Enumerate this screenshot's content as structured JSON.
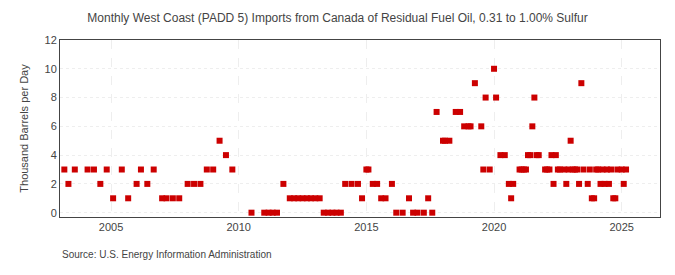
{
  "chart_data": {
    "type": "scatter",
    "title": "Monthly West Coast (PADD 5) Imports from Canada of Residual Fuel Oil, 0.31 to 1.00% Sulfur",
    "y_label": "Thousand Barrels per Day",
    "annotations": [
      "Source: U.S. Energy Information Administration"
    ],
    "color": "#cc0000",
    "marker": "square",
    "grid": true,
    "xlim": [
      2003.0,
      2026.5
    ],
    "xticks": [
      2005,
      2010,
      2015,
      2020,
      2025
    ],
    "ylim": [
      -0.3,
      12
    ],
    "yticks": [
      0,
      2,
      4,
      6,
      8,
      10,
      12
    ],
    "x": [
      2003.17,
      2003.33,
      2003.58,
      2004.08,
      2004.33,
      2004.58,
      2004.83,
      2005.08,
      2005.42,
      2005.67,
      2006.0,
      2006.17,
      2006.42,
      2006.67,
      2007.0,
      2007.17,
      2007.42,
      2007.67,
      2008.0,
      2008.25,
      2008.5,
      2008.75,
      2009.0,
      2009.25,
      2009.5,
      2009.75,
      2010.5,
      2011.0,
      2011.17,
      2011.33,
      2011.5,
      2011.75,
      2012.0,
      2012.17,
      2012.33,
      2012.5,
      2012.67,
      2012.83,
      2013.0,
      2013.17,
      2013.33,
      2013.5,
      2013.67,
      2013.83,
      2014.0,
      2014.17,
      2014.42,
      2014.67,
      2014.83,
      2015.0,
      2015.08,
      2015.25,
      2015.42,
      2015.58,
      2015.75,
      2016.0,
      2016.17,
      2016.42,
      2016.67,
      2016.83,
      2017.0,
      2017.25,
      2017.42,
      2017.58,
      2017.75,
      2018.0,
      2018.08,
      2018.25,
      2018.5,
      2018.67,
      2018.83,
      2019.0,
      2019.08,
      2019.25,
      2019.5,
      2019.58,
      2019.67,
      2019.83,
      2020.0,
      2020.08,
      2020.25,
      2020.42,
      2020.58,
      2020.67,
      2020.75,
      2021.0,
      2021.08,
      2021.17,
      2021.25,
      2021.33,
      2021.42,
      2021.5,
      2021.58,
      2021.67,
      2021.75,
      2022.0,
      2022.08,
      2022.17,
      2022.25,
      2022.33,
      2022.42,
      2022.5,
      2022.58,
      2022.75,
      2022.83,
      2022.92,
      2023.0,
      2023.08,
      2023.17,
      2023.25,
      2023.33,
      2023.42,
      2023.5,
      2023.67,
      2023.75,
      2023.83,
      2023.92,
      2024.0,
      2024.08,
      2024.17,
      2024.25,
      2024.33,
      2024.42,
      2024.5,
      2024.58,
      2024.67,
      2024.75,
      2024.83,
      2025.0,
      2025.08,
      2025.17
    ],
    "values": [
      3,
      2,
      3,
      3,
      3,
      2,
      3,
      1,
      3,
      1,
      2,
      3,
      2,
      3,
      1,
      1,
      1,
      1,
      2,
      2,
      2,
      3,
      3,
      5,
      4,
      3,
      0,
      0,
      0,
      0,
      0,
      2,
      1,
      1,
      1,
      1,
      1,
      1,
      1,
      1,
      0,
      0,
      0,
      0,
      0,
      2,
      2,
      2,
      1,
      3,
      3,
      2,
      2,
      1,
      1,
      2,
      0,
      0,
      1,
      0,
      0,
      0,
      1,
      0,
      7,
      5,
      5,
      5,
      7,
      7,
      6,
      6,
      6,
      9,
      6,
      3,
      8,
      3,
      10,
      8,
      4,
      4,
      2,
      1,
      2,
      3,
      3,
      3,
      3,
      4,
      4,
      6,
      8,
      4,
      4,
      3,
      3,
      3,
      4,
      2,
      4,
      3,
      3,
      3,
      2,
      3,
      5,
      3,
      3,
      3,
      2,
      9,
      3,
      2,
      3,
      1,
      1,
      3,
      3,
      2,
      3,
      2,
      3,
      2,
      3,
      1,
      1,
      3,
      3,
      2,
      3
    ]
  }
}
